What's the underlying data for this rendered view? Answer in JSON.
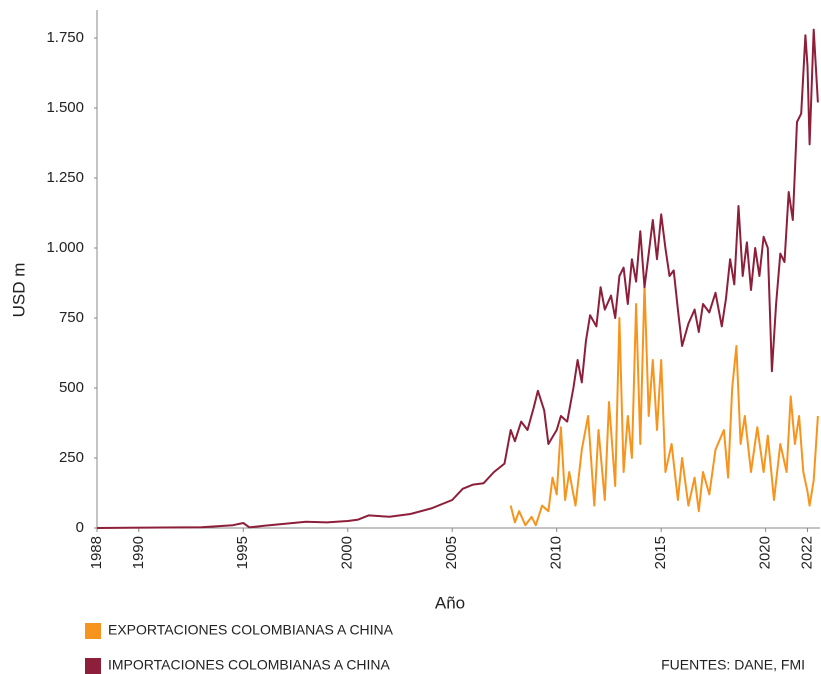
{
  "chart_data": {
    "type": "line",
    "x_label": "Año",
    "y_label": "USD m",
    "xlim": [
      1988,
      2022.6
    ],
    "ylim": [
      0,
      1850
    ],
    "xticks": [
      1988,
      1990,
      1995,
      2000,
      2005,
      2010,
      2015,
      2020,
      2022
    ],
    "yticks": [
      0,
      250,
      500,
      750,
      {
        "value": 1000,
        "label": "1.000"
      },
      {
        "value": 1250,
        "label": "1.250"
      },
      {
        "value": 1500,
        "label": "1.500"
      },
      {
        "value": 1750,
        "label": "1.750"
      }
    ],
    "grid": false,
    "source": "FUENTES: DANE, FMI",
    "series": [
      {
        "name": "EXPORTACIONES COLOMBIANAS A CHINA",
        "color": "#f7941d",
        "x": [
          2007.8,
          2008.0,
          2008.2,
          2008.5,
          2008.8,
          2009.0,
          2009.3,
          2009.6,
          2009.8,
          2010.0,
          2010.2,
          2010.4,
          2010.6,
          2010.9,
          2011.2,
          2011.5,
          2011.8,
          2012.0,
          2012.3,
          2012.5,
          2012.8,
          2013.0,
          2013.2,
          2013.4,
          2013.6,
          2013.8,
          2014.0,
          2014.2,
          2014.4,
          2014.6,
          2014.8,
          2015.0,
          2015.2,
          2015.5,
          2015.8,
          2016.0,
          2016.3,
          2016.6,
          2016.8,
          2017.0,
          2017.3,
          2017.6,
          2018.0,
          2018.2,
          2018.4,
          2018.6,
          2018.8,
          2019.0,
          2019.3,
          2019.6,
          2019.9,
          2020.1,
          2020.4,
          2020.7,
          2021.0,
          2021.2,
          2021.4,
          2021.6,
          2021.8,
          2022.0,
          2022.1,
          2022.3,
          2022.5
        ],
        "values": [
          80,
          20,
          60,
          10,
          40,
          10,
          80,
          60,
          180,
          120,
          360,
          100,
          200,
          80,
          280,
          400,
          80,
          350,
          100,
          450,
          150,
          750,
          200,
          400,
          250,
          800,
          300,
          870,
          400,
          600,
          350,
          600,
          200,
          300,
          100,
          250,
          80,
          180,
          60,
          200,
          120,
          280,
          350,
          180,
          500,
          650,
          300,
          400,
          200,
          360,
          200,
          330,
          100,
          300,
          200,
          470,
          300,
          400,
          200,
          130,
          80,
          170,
          400
        ]
      },
      {
        "name": "IMPORTACIONES COLOMBIANAS A CHINA",
        "color": "#8e1f3a",
        "x": [
          1988,
          1993,
          1994.5,
          1995,
          1995.3,
          1996,
          1997,
          1998,
          1999,
          2000,
          2000.5,
          2001,
          2002,
          2003,
          2004,
          2005,
          2005.5,
          2006,
          2006.5,
          2007,
          2007.5,
          2007.8,
          2008,
          2008.3,
          2008.6,
          2008.9,
          2009.1,
          2009.4,
          2009.6,
          2010,
          2010.2,
          2010.5,
          2010.8,
          2011,
          2011.2,
          2011.4,
          2011.6,
          2011.9,
          2012.1,
          2012.3,
          2012.6,
          2012.8,
          2013.0,
          2013.2,
          2013.4,
          2013.6,
          2013.8,
          2014.0,
          2014.2,
          2014.4,
          2014.6,
          2014.8,
          2015.0,
          2015.2,
          2015.4,
          2015.6,
          2015.8,
          2016.0,
          2016.3,
          2016.6,
          2016.8,
          2017.0,
          2017.3,
          2017.6,
          2017.9,
          2018.1,
          2018.3,
          2018.5,
          2018.7,
          2018.9,
          2019.1,
          2019.3,
          2019.5,
          2019.7,
          2019.9,
          2020.1,
          2020.3,
          2020.5,
          2020.7,
          2020.9,
          2021.1,
          2021.3,
          2021.5,
          2021.7,
          2021.9,
          2022.0,
          2022.1,
          2022.3,
          2022.5
        ],
        "values": [
          0,
          3,
          10,
          18,
          2,
          8,
          15,
          22,
          20,
          25,
          30,
          45,
          40,
          50,
          70,
          100,
          140,
          155,
          160,
          200,
          230,
          350,
          310,
          380,
          350,
          430,
          490,
          420,
          300,
          350,
          400,
          380,
          500,
          600,
          520,
          670,
          760,
          720,
          860,
          780,
          830,
          750,
          900,
          930,
          800,
          960,
          880,
          1060,
          860,
          980,
          1100,
          960,
          1120,
          1000,
          900,
          920,
          780,
          650,
          730,
          780,
          700,
          800,
          770,
          840,
          720,
          820,
          960,
          870,
          1150,
          900,
          1020,
          850,
          1000,
          900,
          1040,
          1000,
          560,
          800,
          980,
          950,
          1200,
          1100,
          1450,
          1480,
          1760,
          1650,
          1370,
          1780,
          1520
        ]
      }
    ]
  }
}
